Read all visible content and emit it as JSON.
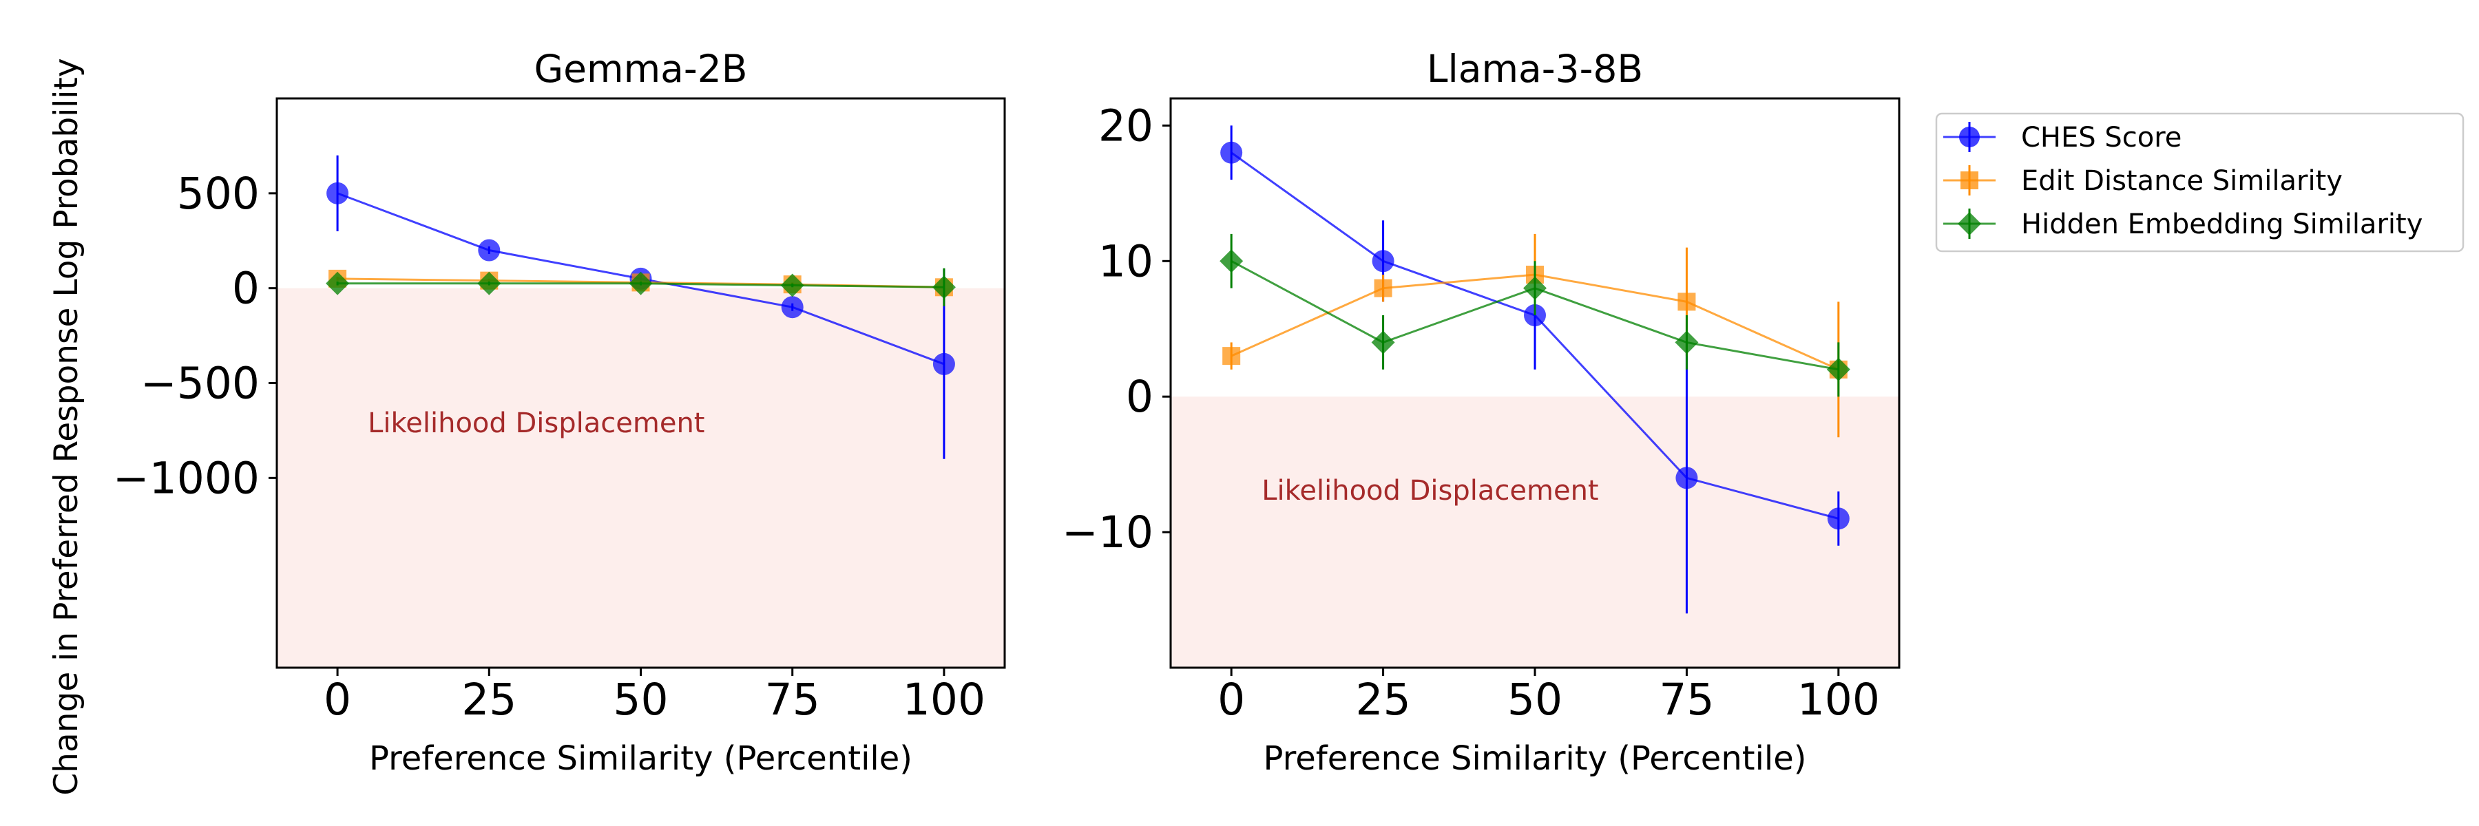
{
  "figure": {
    "ylabel": "Change in Preferred Response Log Probability",
    "legend_position": "upper-right-outside"
  },
  "legend": [
    {
      "name": "CHES Score",
      "color": "#0000ff",
      "marker": "circle"
    },
    {
      "name": "Edit Distance Similarity",
      "color": "#ff8c00",
      "marker": "square"
    },
    {
      "name": "Hidden Embedding Similarity",
      "color": "#008000",
      "marker": "diamond"
    }
  ],
  "shade_color": "#fbe3e0",
  "annotation_color": "#a52a2a",
  "chart_data": [
    {
      "type": "line",
      "title": "Gemma-2B",
      "xlabel": "Preference Similarity (Percentile)",
      "x": [
        0,
        25,
        50,
        75,
        100
      ],
      "xticks": [
        "0",
        "25",
        "50",
        "75",
        "100"
      ],
      "xlim": [
        -10,
        110
      ],
      "ylim": [
        -2000,
        1000
      ],
      "yticks": [
        500,
        0,
        -500,
        -1000
      ],
      "ytick_labels": [
        "500",
        "0",
        "−500",
        "−1000"
      ],
      "annotation": "Likelihood Displacement",
      "series": [
        {
          "name": "CHES Score",
          "values": [
            500,
            200,
            50,
            -100,
            -400
          ],
          "err": [
            200,
            20,
            20,
            20,
            500
          ]
        },
        {
          "name": "Edit Distance Similarity",
          "values": [
            50,
            40,
            30,
            20,
            5
          ],
          "err": [
            10,
            10,
            10,
            10,
            10
          ]
        },
        {
          "name": "Hidden Embedding Similarity",
          "values": [
            25,
            25,
            25,
            15,
            5
          ],
          "err": [
            10,
            10,
            10,
            10,
            100
          ]
        }
      ]
    },
    {
      "type": "line",
      "title": "Llama-3-8B",
      "xlabel": "Preference Similarity (Percentile)",
      "x": [
        0,
        25,
        50,
        75,
        100
      ],
      "xticks": [
        "0",
        "25",
        "50",
        "75",
        "100"
      ],
      "xlim": [
        -10,
        110
      ],
      "ylim": [
        -20,
        22
      ],
      "yticks": [
        20,
        10,
        0,
        -10
      ],
      "ytick_labels": [
        "20",
        "10",
        "0",
        "−10"
      ],
      "annotation": "Likelihood Displacement",
      "series": [
        {
          "name": "CHES Score",
          "values": [
            18,
            10,
            6,
            -6,
            -9
          ],
          "err": [
            2,
            3,
            4,
            10,
            2
          ]
        },
        {
          "name": "Edit Distance Similarity",
          "values": [
            3,
            8,
            9,
            7,
            2
          ],
          "err": [
            1,
            1,
            3,
            4,
            5
          ]
        },
        {
          "name": "Hidden Embedding Similarity",
          "values": [
            10,
            4,
            8,
            4,
            2
          ],
          "err": [
            2,
            2,
            2,
            2,
            2
          ]
        }
      ]
    }
  ]
}
